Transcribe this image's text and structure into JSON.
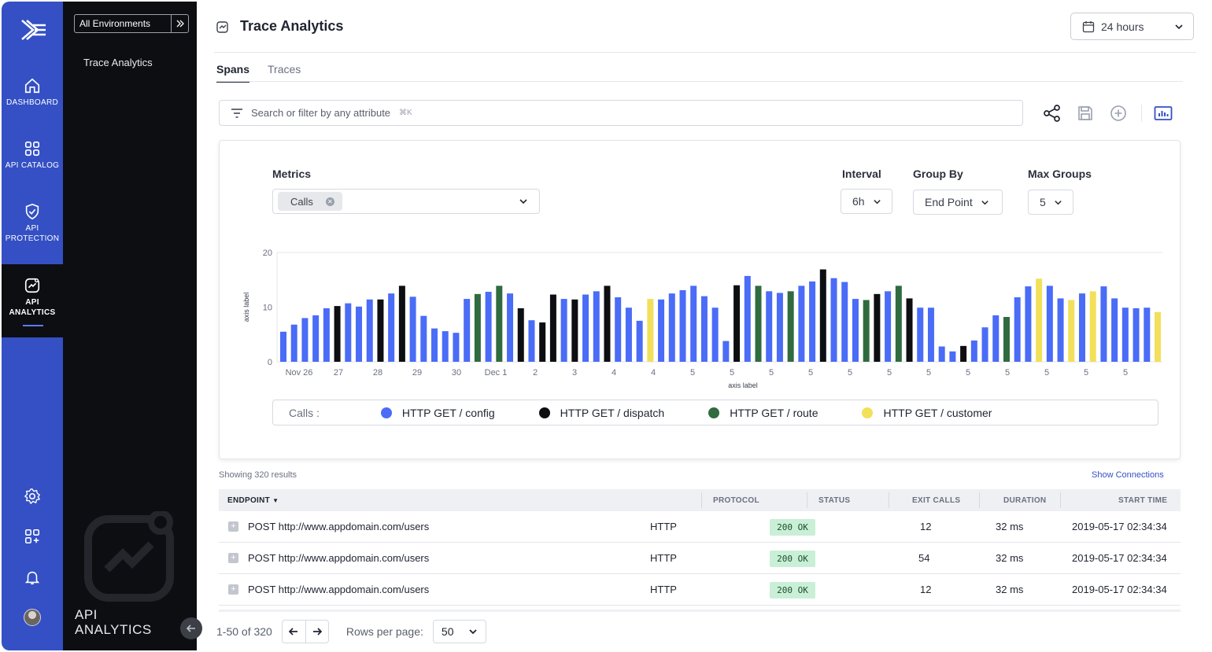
{
  "rail": {
    "items": [
      {
        "label": "DASHBOARD",
        "icon": "home-icon"
      },
      {
        "label": "API CATALOG",
        "icon": "grid-icon"
      },
      {
        "label": "API PROTECTION",
        "icon": "shield-icon"
      },
      {
        "label": "API ANALYTICS",
        "icon": "analytics-icon"
      }
    ],
    "bottom_icons": [
      "settings-icon",
      "add-widget-icon",
      "bell-icon",
      "user-avatar"
    ]
  },
  "subpanel": {
    "environment": "All Environments",
    "nav_link": "Trace Analytics",
    "section_title_line1": "API",
    "section_title_line2": "ANALYTICS"
  },
  "header": {
    "title": "Trace Analytics",
    "time_range": "24 hours"
  },
  "tabs": [
    {
      "label": "Spans",
      "active": true
    },
    {
      "label": "Traces",
      "active": false
    }
  ],
  "search": {
    "placeholder": "Search or filter by any attribute",
    "shortcut": "⌘K"
  },
  "toolbar": {
    "icons": [
      "share-icon",
      "save-icon",
      "add-circle-icon",
      "chart-view-icon"
    ]
  },
  "controls": {
    "metrics_label": "Metrics",
    "metrics_chip": "Calls",
    "interval_label": "Interval",
    "interval_value": "6h",
    "groupby_label": "Group By",
    "groupby_value": "End Point",
    "maxgroups_label": "Max Groups",
    "maxgroups_value": "5"
  },
  "chart_data": {
    "type": "bar",
    "xlabel": "axis label",
    "ylabel": "axis label",
    "ylim": [
      0,
      20
    ],
    "yticks": [
      0,
      10,
      20
    ],
    "grid": false,
    "xtick_labels": [
      "Nov 26",
      "27",
      "28",
      "29",
      "30",
      "Dec 1",
      "2",
      "3",
      "4",
      "4",
      "5",
      "5",
      "5",
      "5",
      "5",
      "5",
      "5",
      "5",
      "5",
      "5",
      "5",
      "5"
    ],
    "legend_title": "Calls :",
    "series": [
      {
        "name": "HTTP GET / config",
        "color": "#4a6cf7"
      },
      {
        "name": "HTTP GET / dispatch",
        "color": "#0d0e12"
      },
      {
        "name": "HTTP GET / route",
        "color": "#2f6b3f"
      },
      {
        "name": "HTTP GET / customer",
        "color": "#f2e05a"
      }
    ],
    "bars": [
      [
        5.5,
        0
      ],
      [
        6.8,
        0
      ],
      [
        8,
        0
      ],
      [
        8.5,
        0
      ],
      [
        9.8,
        0
      ],
      [
        10.2,
        1
      ],
      [
        10.7,
        0
      ],
      [
        10.1,
        0
      ],
      [
        11.4,
        0
      ],
      [
        11.4,
        1
      ],
      [
        12.5,
        0
      ],
      [
        13.9,
        1
      ],
      [
        11.9,
        0
      ],
      [
        8.4,
        0
      ],
      [
        6.1,
        0
      ],
      [
        5.6,
        0
      ],
      [
        5.3,
        0
      ],
      [
        11.5,
        0
      ],
      [
        12.4,
        2
      ],
      [
        12.8,
        0
      ],
      [
        13.9,
        2
      ],
      [
        12.5,
        0
      ],
      [
        9.8,
        1
      ],
      [
        7.6,
        0
      ],
      [
        7.2,
        1
      ],
      [
        12.3,
        1
      ],
      [
        11.5,
        0
      ],
      [
        11.4,
        1
      ],
      [
        12.3,
        0
      ],
      [
        12.9,
        0
      ],
      [
        13.9,
        1
      ],
      [
        11.8,
        0
      ],
      [
        9.9,
        0
      ],
      [
        7.5,
        0
      ],
      [
        11.5,
        3
      ],
      [
        11.4,
        0
      ],
      [
        12.5,
        0
      ],
      [
        13.1,
        0
      ],
      [
        13.9,
        0
      ],
      [
        12.0,
        0
      ],
      [
        9.9,
        0
      ],
      [
        3.8,
        0
      ],
      [
        14.0,
        1
      ],
      [
        15.7,
        0
      ],
      [
        13.9,
        2
      ],
      [
        12.9,
        0
      ],
      [
        12.6,
        0
      ],
      [
        12.9,
        2
      ],
      [
        13.9,
        0
      ],
      [
        14.7,
        0
      ],
      [
        16.9,
        1
      ],
      [
        15.3,
        0
      ],
      [
        14.6,
        0
      ],
      [
        11.5,
        0
      ],
      [
        11.3,
        2
      ],
      [
        12.4,
        1
      ],
      [
        12.9,
        0
      ],
      [
        13.9,
        2
      ],
      [
        11.6,
        1
      ],
      [
        9.9,
        0
      ],
      [
        9.9,
        0
      ],
      [
        2.8,
        0
      ],
      [
        1.9,
        0
      ],
      [
        2.9,
        1
      ],
      [
        3.9,
        0
      ],
      [
        6.3,
        0
      ],
      [
        8.5,
        0
      ],
      [
        8.2,
        2
      ],
      [
        11.8,
        0
      ],
      [
        13.8,
        0
      ],
      [
        15.2,
        3
      ],
      [
        13.9,
        0
      ],
      [
        11.6,
        0
      ],
      [
        11.3,
        3
      ],
      [
        12.5,
        0
      ],
      [
        12.9,
        3
      ],
      [
        13.8,
        0
      ],
      [
        11.6,
        0
      ],
      [
        9.9,
        0
      ],
      [
        9.8,
        0
      ],
      [
        9.9,
        0
      ],
      [
        9.1,
        3
      ]
    ]
  },
  "table": {
    "showing": "Showing 320 results",
    "show_connections": "Show Connections",
    "columns": [
      "ENDPOINT",
      "PROTOCOL",
      "STATUS",
      "EXIT CALLS",
      "DURATION",
      "START TIME"
    ],
    "rows": [
      {
        "endpoint": "POST http://www.appdomain.com/users",
        "protocol": "HTTP",
        "status": "200 OK",
        "exit_calls": "12",
        "duration": "32 ms",
        "start_time": "2019-05-17 02:34:34"
      },
      {
        "endpoint": "POST http://www.appdomain.com/users",
        "protocol": "HTTP",
        "status": "200 OK",
        "exit_calls": "54",
        "duration": "32 ms",
        "start_time": "2019-05-17 02:34:34"
      },
      {
        "endpoint": "POST http://www.appdomain.com/users",
        "protocol": "HTTP",
        "status": "200 OK",
        "exit_calls": "12",
        "duration": "32 ms",
        "start_time": "2019-05-17 02:34:34"
      }
    ]
  },
  "pagination": {
    "range": "1-50 of 320",
    "rows_per_page_label": "Rows per page:",
    "rows_per_page": "50"
  }
}
